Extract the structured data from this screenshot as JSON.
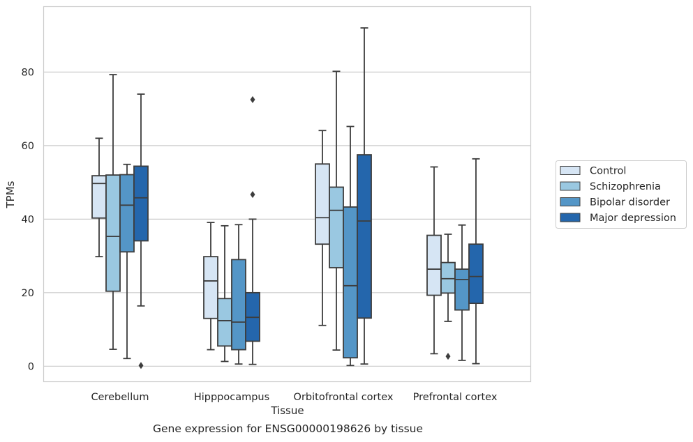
{
  "caption": "Gene expression for ENSG00000198626 by tissue",
  "chart_data": {
    "type": "box",
    "title": "",
    "xlabel": "Tissue",
    "ylabel": "TPMs",
    "ylim": [
      -4.3,
      97.7
    ],
    "yticks": [
      0,
      20,
      40,
      60,
      80
    ],
    "grid": "horizontal",
    "legend_position": "center-right",
    "categories": [
      "Cerebellum",
      "Hipppocampus",
      "Orbitofrontal cortex",
      "Prefrontal cortex"
    ],
    "series": [
      {
        "name": "Control",
        "color": "#d6e5f4",
        "boxes": [
          {
            "whislo": 29.8,
            "q1": 40.3,
            "med": 49.7,
            "q3": 51.8,
            "whishi": 62.0,
            "fliers": []
          },
          {
            "whislo": 4.5,
            "q1": 13.0,
            "med": 23.2,
            "q3": 29.8,
            "whishi": 39.1,
            "fliers": []
          },
          {
            "whislo": 11.1,
            "q1": 33.2,
            "med": 40.4,
            "q3": 55.0,
            "whishi": 64.1,
            "fliers": []
          },
          {
            "whislo": 3.4,
            "q1": 19.3,
            "med": 26.4,
            "q3": 35.6,
            "whishi": 54.2,
            "fliers": []
          }
        ]
      },
      {
        "name": "Schizophrenia",
        "color": "#9ac8e1",
        "boxes": [
          {
            "whislo": 4.6,
            "q1": 20.4,
            "med": 35.3,
            "q3": 52.0,
            "whishi": 79.3,
            "fliers": []
          },
          {
            "whislo": 1.3,
            "q1": 5.5,
            "med": 12.4,
            "q3": 18.4,
            "whishi": 38.2,
            "fliers": []
          },
          {
            "whislo": 4.4,
            "q1": 26.8,
            "med": 42.4,
            "q3": 48.7,
            "whishi": 80.2,
            "fliers": []
          },
          {
            "whislo": 12.2,
            "q1": 19.9,
            "med": 23.8,
            "q3": 28.2,
            "whishi": 35.9,
            "fliers": [
              2.7
            ]
          }
        ]
      },
      {
        "name": "Bipolar disorder",
        "color": "#5496c7",
        "boxes": [
          {
            "whislo": 2.1,
            "q1": 31.1,
            "med": 43.8,
            "q3": 52.1,
            "whishi": 54.9,
            "fliers": []
          },
          {
            "whislo": 0.6,
            "q1": 4.5,
            "med": 12.0,
            "q3": 29.0,
            "whishi": 38.5,
            "fliers": []
          },
          {
            "whislo": 0.2,
            "q1": 2.3,
            "med": 21.9,
            "q3": 43.3,
            "whishi": 65.2,
            "fliers": []
          },
          {
            "whislo": 1.6,
            "q1": 15.3,
            "med": 23.6,
            "q3": 26.4,
            "whishi": 38.4,
            "fliers": []
          }
        ]
      },
      {
        "name": "Major depression",
        "color": "#2466ac",
        "boxes": [
          {
            "whislo": 16.4,
            "q1": 34.1,
            "med": 45.8,
            "q3": 54.4,
            "whishi": 74.0,
            "fliers": [
              0.2
            ]
          },
          {
            "whislo": 0.5,
            "q1": 6.8,
            "med": 13.3,
            "q3": 20.0,
            "whishi": 40.0,
            "fliers": [
              46.7,
              72.5
            ]
          },
          {
            "whislo": 0.6,
            "q1": 13.1,
            "med": 39.5,
            "q3": 57.5,
            "whishi": 92.0,
            "fliers": []
          },
          {
            "whislo": 0.7,
            "q1": 17.1,
            "med": 24.4,
            "q3": 33.2,
            "whishi": 56.4,
            "fliers": []
          }
        ]
      }
    ]
  }
}
